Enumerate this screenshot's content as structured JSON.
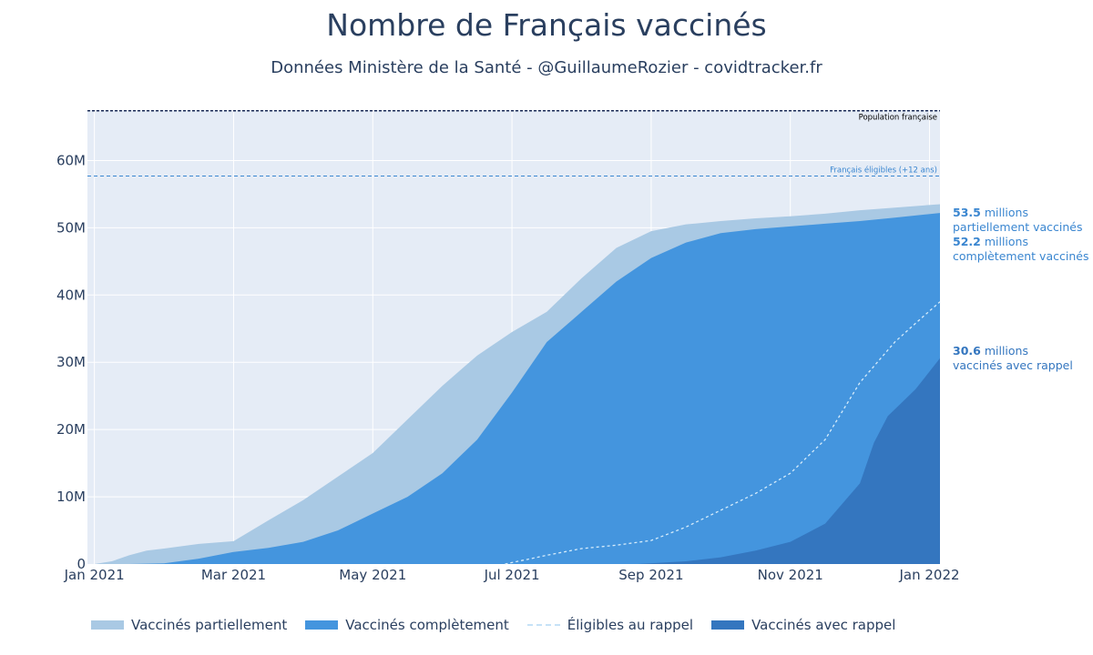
{
  "header": {
    "title": "Nombre de Français vaccinés",
    "subtitle": "Données Ministère de la Santé - @GuillaumeRozier - covidtracker.fr"
  },
  "colors": {
    "plot_bg": "#e5ecf6",
    "grid": "#ffffff",
    "partial": "#a9c9e4",
    "complete": "#4495de",
    "booster": "#3476bf",
    "eligible_booster": "#d6ecfb",
    "population_line": "#1a2a55",
    "eligible_line": "#3a86d0",
    "text": "#2a3f5f"
  },
  "chart_data": {
    "type": "area",
    "title": "Nombre de Français vaccinés",
    "subtitle": "Données Ministère de la Santé - @GuillaumeRozier - covidtracker.fr",
    "xlabel": "",
    "ylabel": "",
    "x_unit": "months since 2021-01-01",
    "xlim": [
      -0.1,
      12.15
    ],
    "ylim": [
      0,
      67.5
    ],
    "x_ticks": [
      {
        "x": 0,
        "label": "Jan 2021"
      },
      {
        "x": 2,
        "label": "Mar 2021"
      },
      {
        "x": 4,
        "label": "May 2021"
      },
      {
        "x": 6,
        "label": "Jul 2021"
      },
      {
        "x": 8,
        "label": "Sep 2021"
      },
      {
        "x": 10,
        "label": "Nov 2021"
      },
      {
        "x": 12,
        "label": "Jan 2022"
      }
    ],
    "y_ticks": [
      {
        "y": 0,
        "label": "0"
      },
      {
        "y": 10,
        "label": "10M"
      },
      {
        "y": 20,
        "label": "20M"
      },
      {
        "y": 30,
        "label": "30M"
      },
      {
        "y": 40,
        "label": "40M"
      },
      {
        "y": 50,
        "label": "50M"
      },
      {
        "y": 60,
        "label": "60M"
      }
    ],
    "reference_lines": [
      {
        "name": "Population française",
        "y": 67.4
      },
      {
        "name": "Français éligibles (+12 ans)",
        "y": 57.7
      }
    ],
    "series": [
      {
        "name": "Vaccinés partiellement",
        "style": "area",
        "x": [
          0,
          0.25,
          0.5,
          0.75,
          1,
          1.5,
          2,
          2.5,
          3,
          3.5,
          4,
          4.5,
          5,
          5.5,
          6,
          6.5,
          7,
          7.5,
          8,
          8.5,
          9,
          9.5,
          10,
          10.5,
          11,
          11.5,
          12.15
        ],
        "y": [
          0,
          0.4,
          1.3,
          2.0,
          2.3,
          3.0,
          3.4,
          6.5,
          9.5,
          13.0,
          16.5,
          21.5,
          26.5,
          31.0,
          34.5,
          37.5,
          42.5,
          47.0,
          49.5,
          50.5,
          51.0,
          51.4,
          51.7,
          52.1,
          52.6,
          53.0,
          53.5
        ]
      },
      {
        "name": "Vaccinés complètement",
        "style": "area",
        "x": [
          0,
          0.5,
          1,
          1.5,
          2,
          2.5,
          3,
          3.5,
          4,
          4.5,
          5,
          5.5,
          6,
          6.5,
          7,
          7.5,
          8,
          8.5,
          9,
          9.5,
          10,
          10.5,
          11,
          11.5,
          12.15
        ],
        "y": [
          0,
          0,
          0.1,
          0.8,
          1.8,
          2.4,
          3.3,
          5.0,
          7.5,
          10.0,
          13.5,
          18.5,
          25.5,
          33.0,
          37.5,
          42.0,
          45.5,
          47.8,
          49.2,
          49.8,
          50.2,
          50.6,
          51.0,
          51.5,
          52.2
        ]
      },
      {
        "name": "Éligibles au rappel",
        "style": "dashed-line",
        "x": [
          5.9,
          6.5,
          7,
          7.5,
          8,
          8.5,
          9,
          9.5,
          10,
          10.5,
          11,
          11.5,
          11.8,
          12.15
        ],
        "y": [
          0,
          1.3,
          2.3,
          2.8,
          3.5,
          5.5,
          8.0,
          10.5,
          13.5,
          18.5,
          27.0,
          33.0,
          35.8,
          39.0
        ]
      },
      {
        "name": "Vaccinés avec rappel",
        "style": "area",
        "x": [
          7.8,
          8.5,
          9,
          9.5,
          10,
          10.5,
          11,
          11.2,
          11.4,
          11.6,
          11.8,
          12.15
        ],
        "y": [
          0,
          0.4,
          1.0,
          2.0,
          3.3,
          6.0,
          12.0,
          18.0,
          22.0,
          24.0,
          26.0,
          30.6
        ]
      }
    ],
    "end_labels": [
      {
        "series": "Vaccinés partiellement",
        "value_text": "53.5",
        "unit": " millions",
        "label": "partiellement vaccinés"
      },
      {
        "series": "Vaccinés complètement",
        "value_text": "52.2",
        "unit": " millions",
        "label": "complètement vaccinés"
      },
      {
        "series": "Vaccinés avec rappel",
        "value_text": "30.6",
        "unit": " millions",
        "label": "vaccinés avec rappel"
      }
    ],
    "legend_position": "bottom"
  },
  "legend": {
    "items": [
      {
        "label": "Vaccinés partiellement"
      },
      {
        "label": "Vaccinés complètement"
      },
      {
        "label": "Éligibles au rappel"
      },
      {
        "label": "Vaccinés avec rappel"
      }
    ]
  }
}
